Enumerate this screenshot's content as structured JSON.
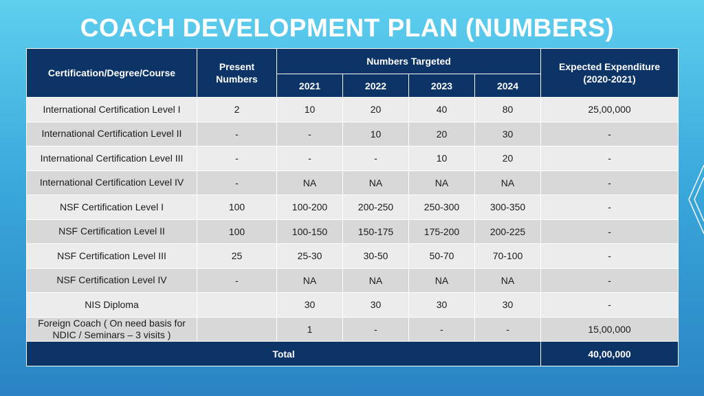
{
  "title": "COACH DEVELOPMENT PLAN (NUMBERS)",
  "colors": {
    "header_bg": "#0d3466",
    "row_light": "#ececec",
    "row_dark": "#d8d8d8"
  },
  "table": {
    "headers": {
      "course": "Certification/Degree/Course",
      "present": "Present Numbers",
      "targeted": "Numbers Targeted",
      "years": [
        "2021",
        "2022",
        "2023",
        "2024"
      ],
      "expenditure": "Expected Expenditure (2020-2021)"
    },
    "rows": [
      {
        "course": "International Certification Level I",
        "present": "2",
        "y2021": "10",
        "y2022": "20",
        "y2023": "40",
        "y2024": "80",
        "expenditure": "25,00,000"
      },
      {
        "course": "International Certification Level II",
        "present": "-",
        "y2021": "-",
        "y2022": "10",
        "y2023": "20",
        "y2024": "30",
        "expenditure": "-"
      },
      {
        "course": "International Certification Level III",
        "present": "-",
        "y2021": "-",
        "y2022": "-",
        "y2023": "10",
        "y2024": "20",
        "expenditure": "-"
      },
      {
        "course": "International Certification Level IV",
        "present": "-",
        "y2021": "NA",
        "y2022": "NA",
        "y2023": "NA",
        "y2024": "NA",
        "expenditure": "-"
      },
      {
        "course": "NSF Certification Level I",
        "present": "100",
        "y2021": "100-200",
        "y2022": "200-250",
        "y2023": "250-300",
        "y2024": "300-350",
        "expenditure": "-"
      },
      {
        "course": "NSF Certification Level II",
        "present": "100",
        "y2021": "100-150",
        "y2022": "150-175",
        "y2023": "175-200",
        "y2024": "200-225",
        "expenditure": "-"
      },
      {
        "course": "NSF Certification Level III",
        "present": "25",
        "y2021": "25-30",
        "y2022": "30-50",
        "y2023": "50-70",
        "y2024": "70-100",
        "expenditure": "-"
      },
      {
        "course": "NSF Certification Level IV",
        "present": "-",
        "y2021": "NA",
        "y2022": "NA",
        "y2023": "NA",
        "y2024": "NA",
        "expenditure": "-"
      },
      {
        "course": "NIS Diploma",
        "present": "",
        "y2021": "30",
        "y2022": "30",
        "y2023": "30",
        "y2024": "30",
        "expenditure": "-"
      },
      {
        "course": "Foreign Coach ( On need basis for NDIC / Seminars – 3 visits )",
        "present": "",
        "y2021": "1",
        "y2022": "-",
        "y2023": "-",
        "y2024": "-",
        "expenditure": "15,00,000"
      }
    ],
    "total": {
      "label": "Total",
      "value": "40,00,000"
    }
  }
}
